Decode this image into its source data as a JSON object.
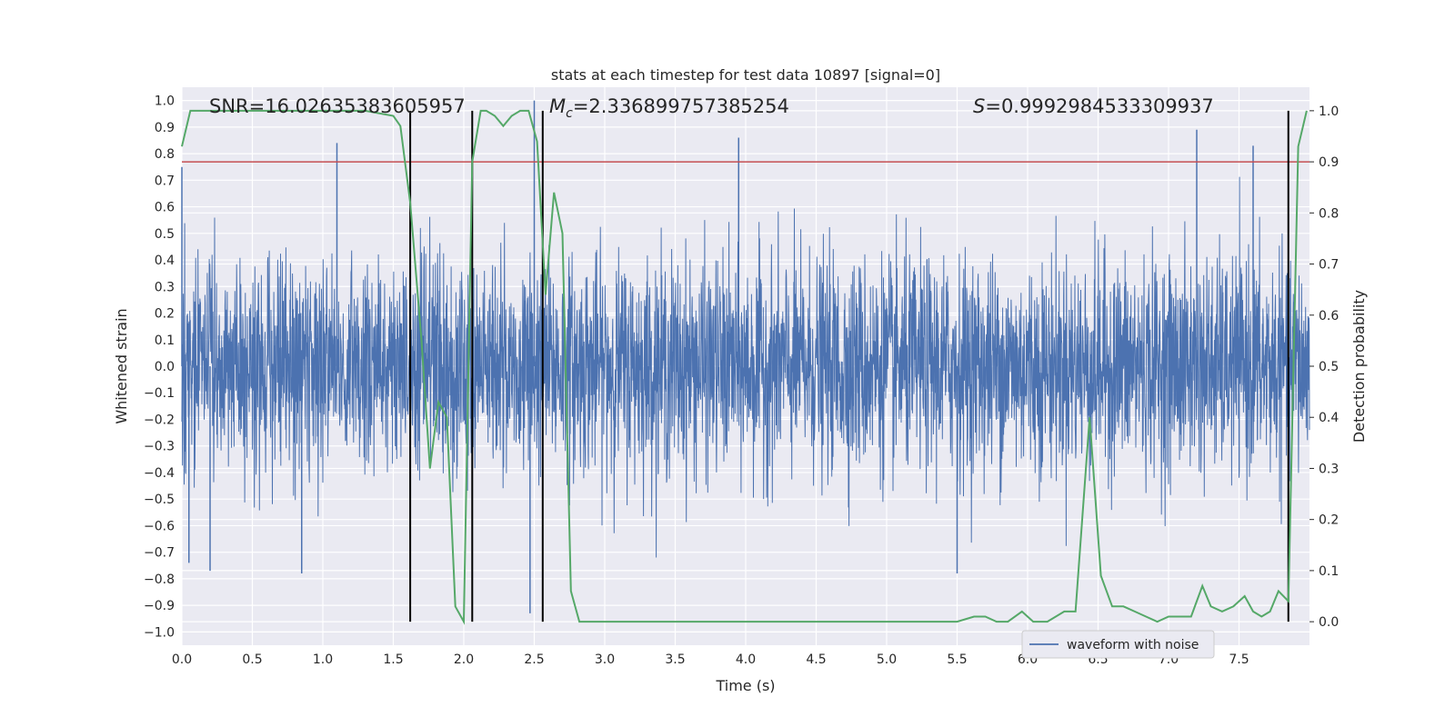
{
  "chart_data": {
    "type": "line",
    "title": "stats at each timestep for test data 10897 [signal=0]",
    "xlabel": "Time (s)",
    "ylabel_left": "Whitened strain",
    "ylabel_right": "Detection probability",
    "xlim": [
      0,
      8.0
    ],
    "ylim_left": [
      -1.05,
      1.05
    ],
    "ylim_right": [
      -0.046,
      1.046
    ],
    "x_ticks": [
      "0.0",
      "0.5",
      "1.0",
      "1.5",
      "2.0",
      "2.5",
      "3.0",
      "3.5",
      "4.0",
      "4.5",
      "5.0",
      "5.5",
      "6.0",
      "6.5",
      "7.0",
      "7.5"
    ],
    "y_ticks_left": [
      "1.0",
      "0.9",
      "0.8",
      "0.7",
      "0.6",
      "0.5",
      "0.4",
      "0.3",
      "0.2",
      "0.1",
      "0.0",
      "−0.1",
      "−0.2",
      "−0.3",
      "−0.4",
      "−0.5",
      "−0.6",
      "−0.7",
      "−0.8",
      "−0.9",
      "−1.0"
    ],
    "y_ticks_right": [
      "1.0",
      "0.9",
      "0.8",
      "0.7",
      "0.6",
      "0.5",
      "0.4",
      "0.3",
      "0.2",
      "0.1",
      "0.0"
    ],
    "grid": true,
    "annotations": {
      "snr": "SNR=16.02635383605957",
      "mc_symbol": "M",
      "mc_sub": "c",
      "mc_value": "=2.336899757385254",
      "s_symbol": "S",
      "s_value": "=0.9992984533309937"
    },
    "threshold_line": {
      "y_prob": 0.9,
      "color": "#c44e52"
    },
    "vertical_markers": [
      1.62,
      2.06,
      2.56,
      7.85
    ],
    "waveform": {
      "name": "waveform with noise",
      "color": "#4c72b0",
      "notable_peaks": [
        {
          "x": 0.0,
          "y": 0.75
        },
        {
          "x": 0.05,
          "y": -0.74
        },
        {
          "x": 0.2,
          "y": -0.77
        },
        {
          "x": 0.85,
          "y": -0.78
        },
        {
          "x": 1.1,
          "y": 0.84
        },
        {
          "x": 1.62,
          "y": -0.63
        },
        {
          "x": 2.06,
          "y": -0.9
        },
        {
          "x": 2.5,
          "y": 1.0
        },
        {
          "x": 2.47,
          "y": -0.93
        },
        {
          "x": 3.95,
          "y": 0.86
        },
        {
          "x": 5.5,
          "y": -0.78
        },
        {
          "x": 7.2,
          "y": 0.89
        },
        {
          "x": 7.6,
          "y": 0.83
        },
        {
          "x": 7.85,
          "y": 0.75
        }
      ]
    },
    "probability": {
      "color": "#55a868",
      "x": [
        0.0,
        0.06,
        0.15,
        0.5,
        1.0,
        1.3,
        1.5,
        1.55,
        1.62,
        1.7,
        1.76,
        1.82,
        1.88,
        1.94,
        2.0,
        2.06,
        2.12,
        2.16,
        2.22,
        2.28,
        2.34,
        2.4,
        2.46,
        2.52,
        2.58,
        2.64,
        2.7,
        2.76,
        2.82,
        2.88,
        3.0,
        3.2,
        3.5,
        4.0,
        4.5,
        5.0,
        5.3,
        5.5,
        5.62,
        5.7,
        5.78,
        5.86,
        5.96,
        6.04,
        6.14,
        6.26,
        6.34,
        6.44,
        6.52,
        6.6,
        6.68,
        6.76,
        6.84,
        6.92,
        7.0,
        7.08,
        7.16,
        7.24,
        7.3,
        7.38,
        7.46,
        7.54,
        7.6,
        7.66,
        7.72,
        7.78,
        7.85,
        7.92,
        7.98
      ],
      "y": [
        0.93,
        1.0,
        1.0,
        1.0,
        1.0,
        1.0,
        0.99,
        0.97,
        0.82,
        0.55,
        0.3,
        0.43,
        0.4,
        0.03,
        0.0,
        0.9,
        1.0,
        1.0,
        0.99,
        0.97,
        0.99,
        1.0,
        1.0,
        0.94,
        0.64,
        0.84,
        0.76,
        0.06,
        0.0,
        0.0,
        0.0,
        0.0,
        0.0,
        0.0,
        0.0,
        0.0,
        0.0,
        0.0,
        0.01,
        0.01,
        0.0,
        0.0,
        0.02,
        0.0,
        0.0,
        0.02,
        0.02,
        0.4,
        0.09,
        0.03,
        0.03,
        0.02,
        0.01,
        0.0,
        0.01,
        0.01,
        0.01,
        0.07,
        0.03,
        0.02,
        0.03,
        0.05,
        0.02,
        0.01,
        0.02,
        0.06,
        0.04,
        0.93,
        1.0
      ]
    },
    "legend": {
      "position": "bottom-right"
    }
  }
}
